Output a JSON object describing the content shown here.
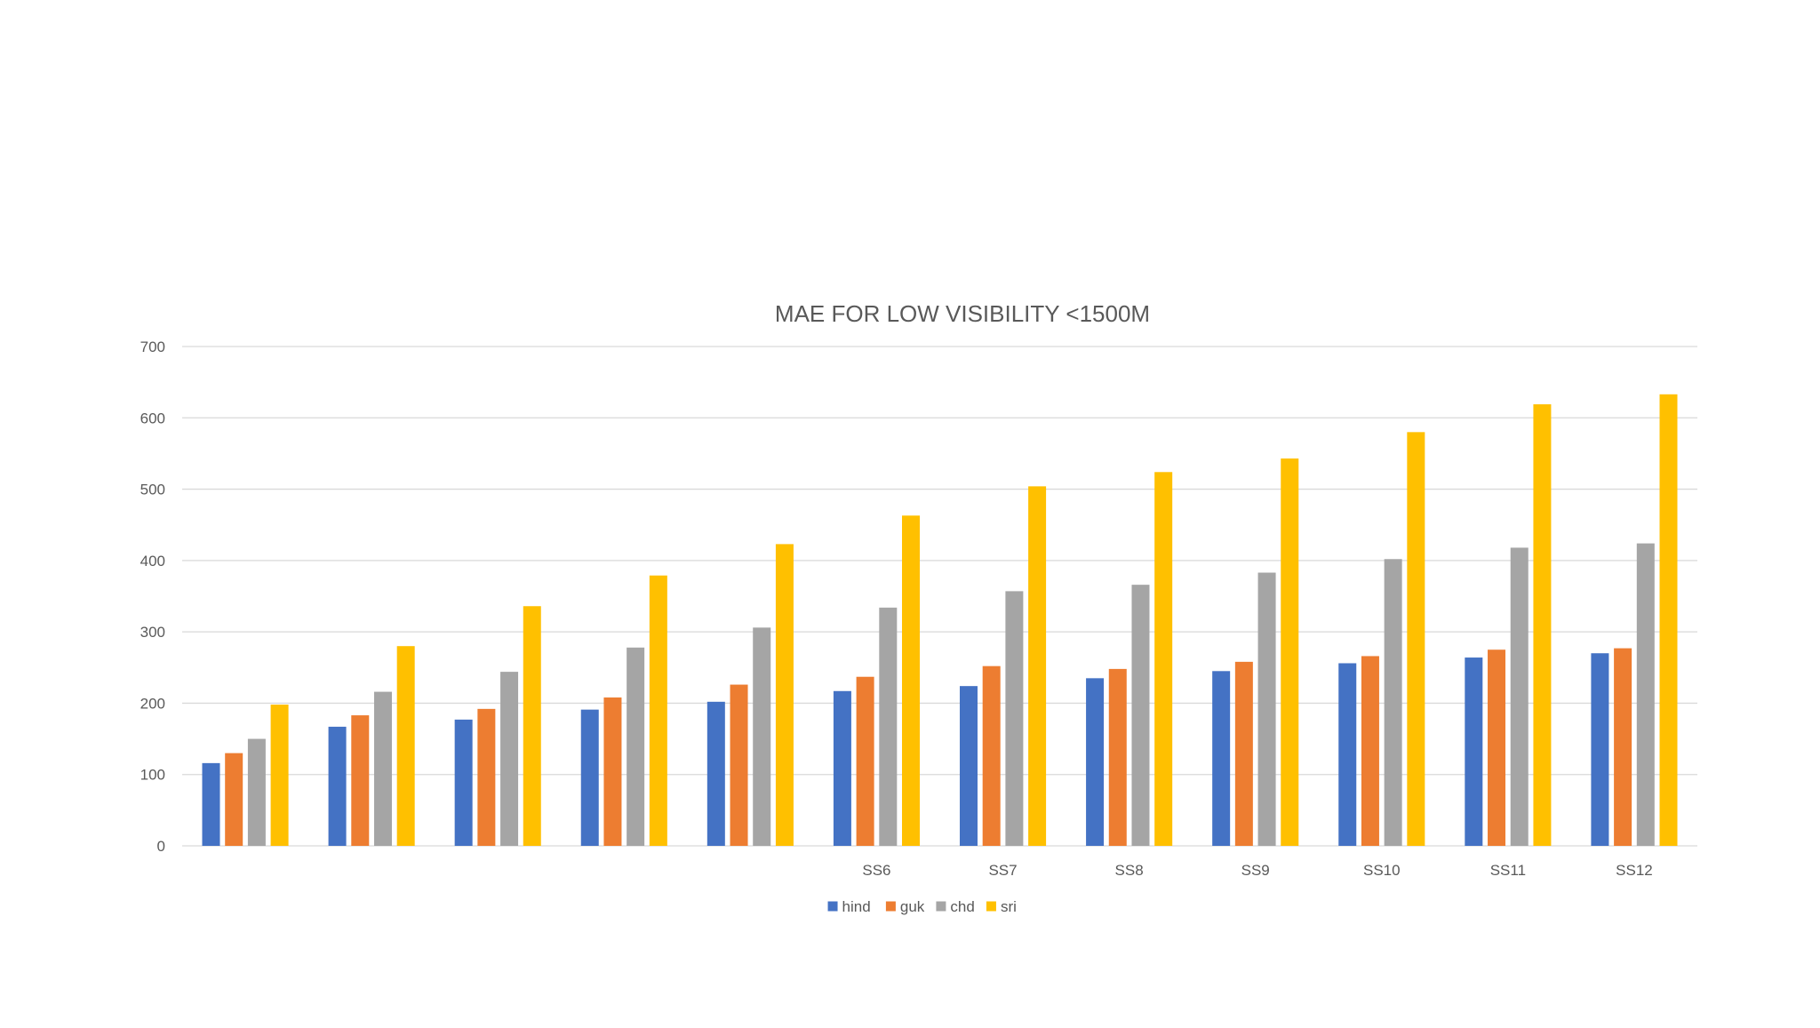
{
  "chart_data": {
    "type": "bar",
    "title": "MAE FOR LOW VISIBILITY <1500M",
    "xlabel": "",
    "ylabel": "",
    "ylim": [
      0,
      700
    ],
    "yticks": [
      0,
      100,
      200,
      300,
      400,
      500,
      600,
      700
    ],
    "grid": true,
    "legend_position": "bottom",
    "categories": [
      "",
      "",
      "",
      "",
      "",
      "SS6",
      "SS7",
      "SS8",
      "SS9",
      "SS10",
      "SS11",
      "SS12"
    ],
    "series": [
      {
        "name": "hind",
        "color": "#4472C4",
        "values": [
          116,
          167,
          177,
          191,
          202,
          217,
          224,
          235,
          245,
          256,
          264,
          270
        ]
      },
      {
        "name": "guk",
        "color": "#ED7D31",
        "values": [
          130,
          183,
          192,
          208,
          226,
          237,
          252,
          248,
          258,
          266,
          275,
          277
        ]
      },
      {
        "name": "chd",
        "color": "#A5A5A5",
        "values": [
          150,
          216,
          244,
          278,
          306,
          334,
          357,
          366,
          383,
          402,
          418,
          424
        ]
      },
      {
        "name": "sri",
        "color": "#FFC000",
        "values": [
          198,
          280,
          336,
          379,
          423,
          463,
          504,
          524,
          543,
          580,
          619,
          633
        ]
      }
    ]
  },
  "colors": {
    "gridline": "#D9D9D9",
    "text": "#595959",
    "axis": "#D9D9D9"
  }
}
